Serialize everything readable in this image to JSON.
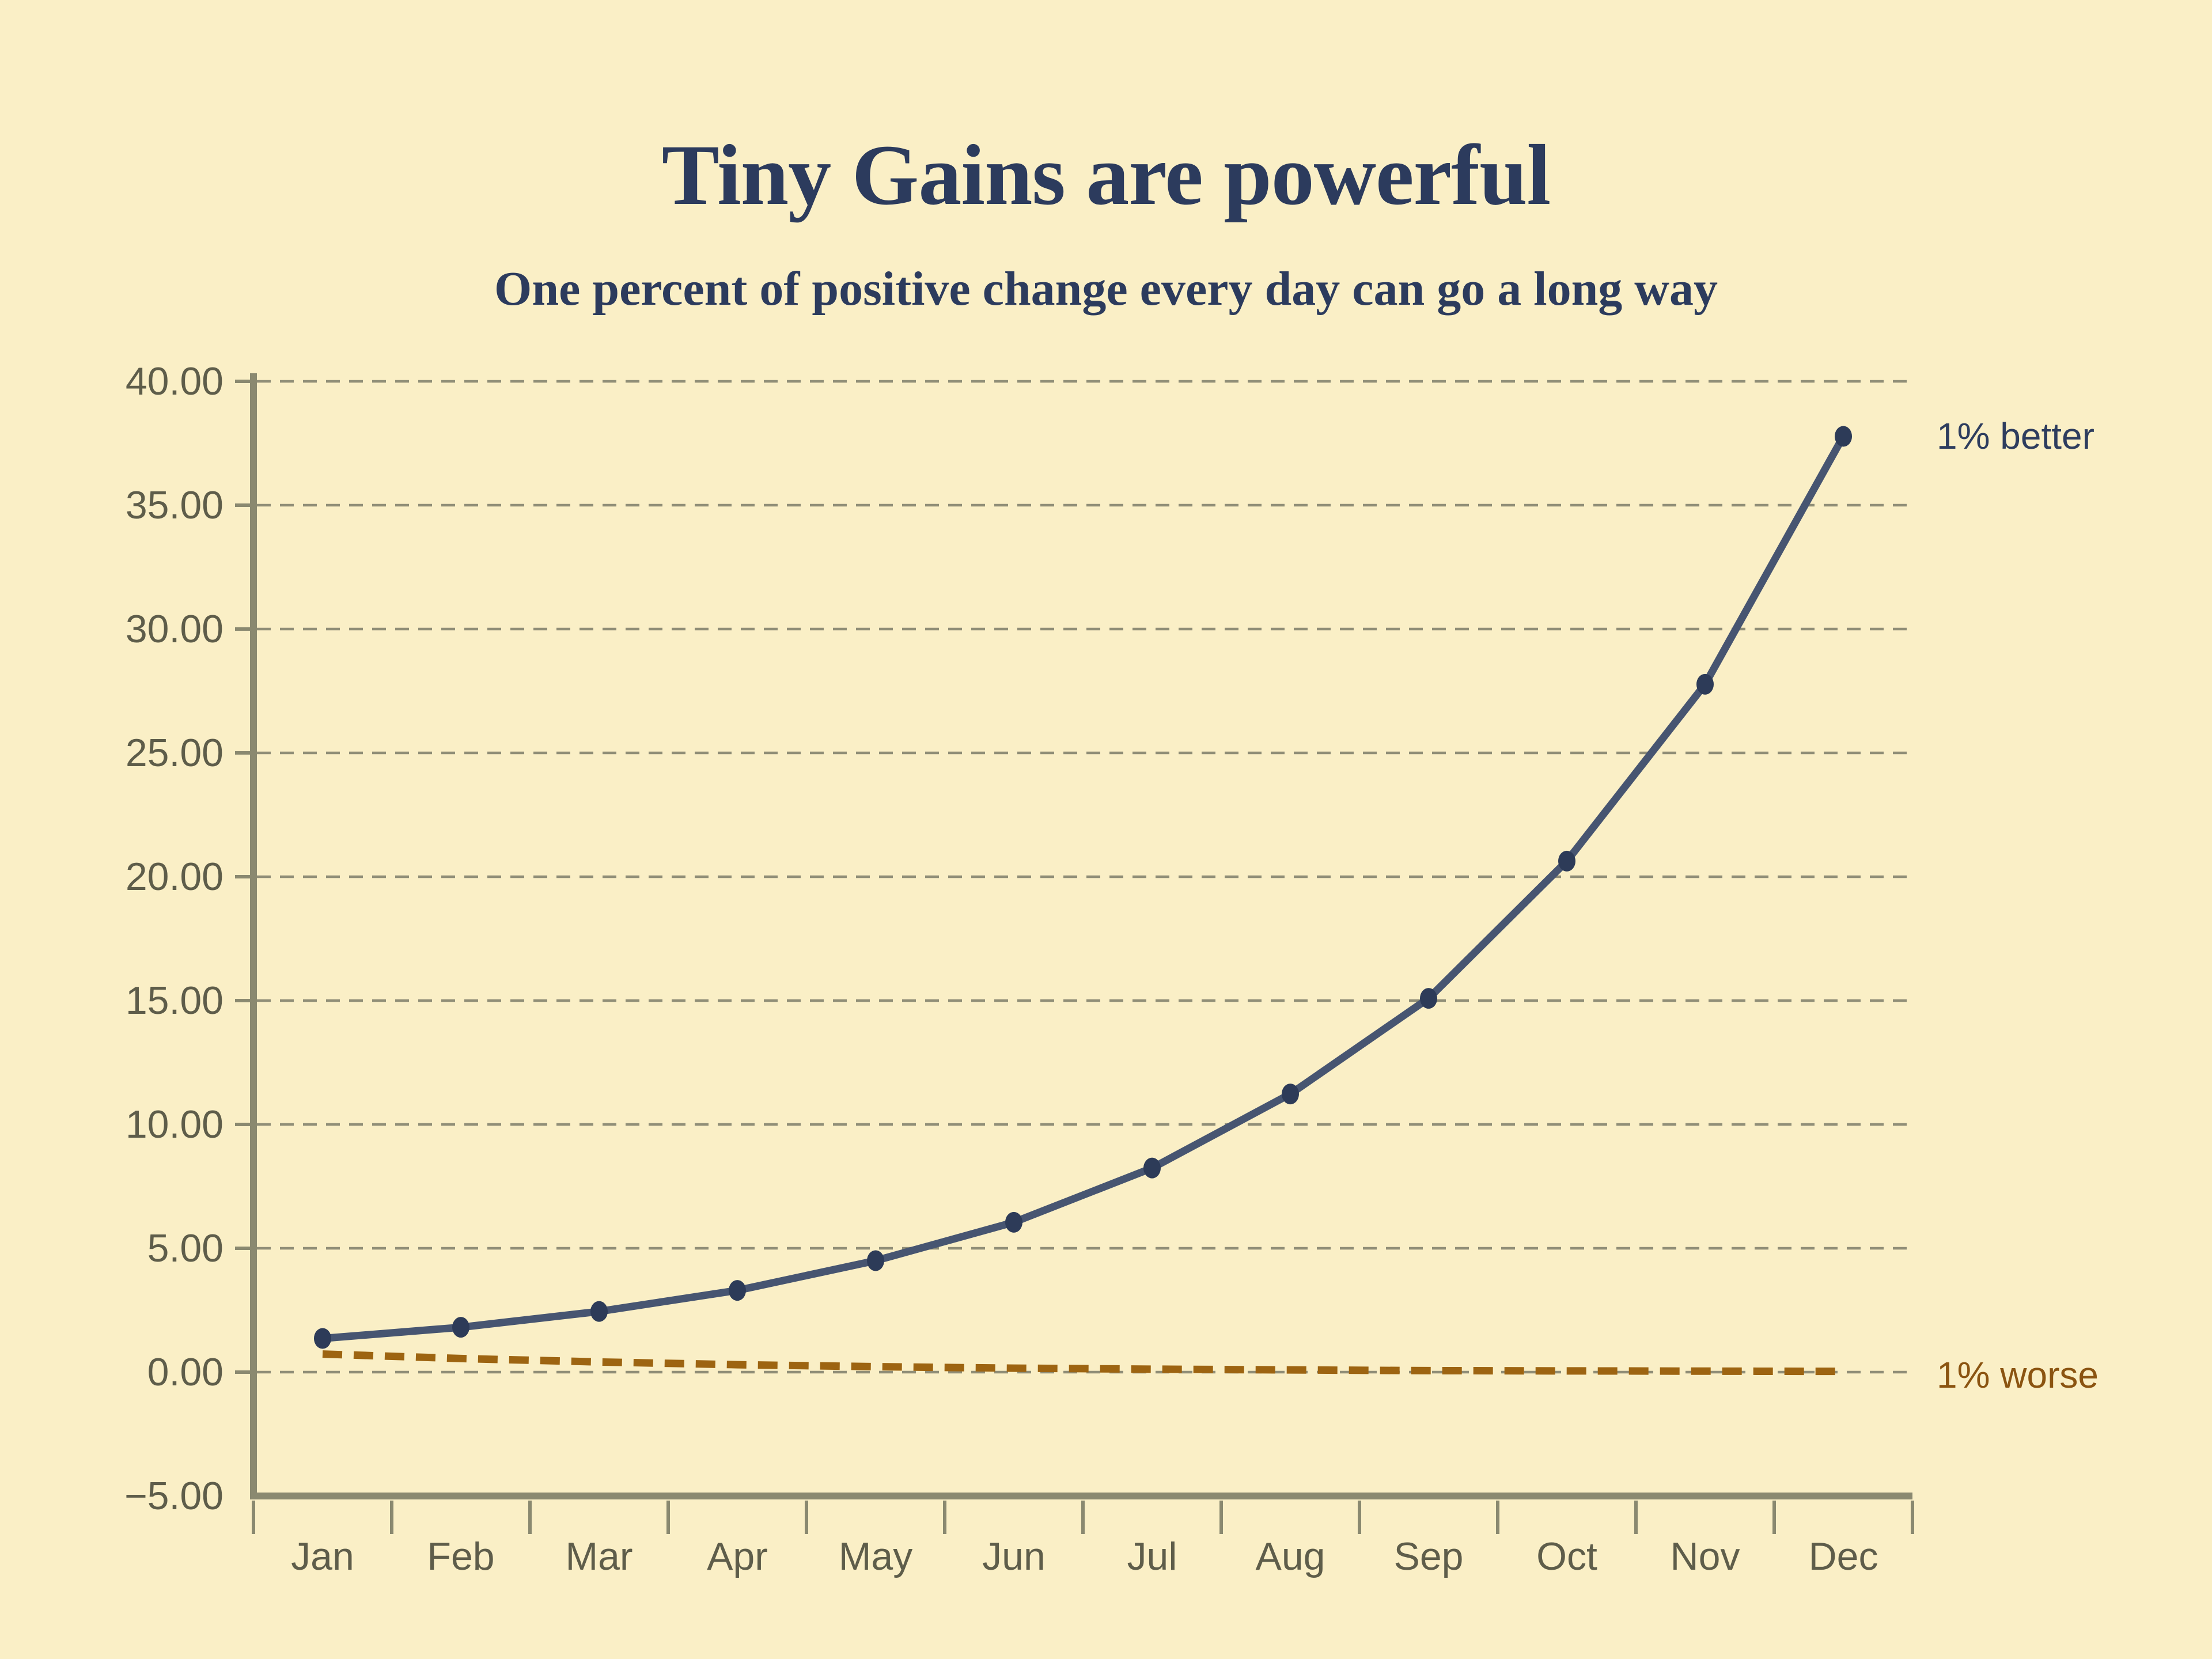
{
  "page": {
    "background_color": "#FAEFC6"
  },
  "chart_data": {
    "type": "line",
    "title": "Tiny Gains are powerful",
    "subtitle": "One percent of positive change every day can go a long way",
    "title_color": "#2C3B5D",
    "categories": [
      "Jan",
      "Feb",
      "Mar",
      "Apr",
      "May",
      "Jun",
      "Jul",
      "Aug",
      "Sep",
      "Oct",
      "Nov",
      "Dec"
    ],
    "series": [
      {
        "name": "1% better",
        "label": "1% better",
        "values": [
          1.36,
          1.81,
          2.45,
          3.3,
          4.5,
          6.05,
          8.24,
          11.23,
          15.09,
          20.63,
          27.77,
          37.78
        ],
        "line_color": "#475571",
        "marker_color": "#2D3B58",
        "label_color": "#2E3D5E",
        "line_style": "solid",
        "markers": true
      },
      {
        "name": "1% worse",
        "label": "1% worse",
        "values": [
          0.73,
          0.55,
          0.41,
          0.3,
          0.22,
          0.16,
          0.12,
          0.09,
          0.06,
          0.05,
          0.04,
          0.03
        ],
        "line_color": "#9D6411",
        "marker_color": "#9D6411",
        "label_color": "#8B5411",
        "line_style": "dashed",
        "markers": false
      }
    ],
    "ylim": [
      -5,
      40
    ],
    "ytick_step": 5,
    "ytick_decimals": 2,
    "grid": {
      "show": true,
      "style": "dashed",
      "color": "#908E77"
    },
    "axis_color": "#8A8970",
    "tick_label_color": "#5E5D4A",
    "legend_position": "right-of-last-point"
  }
}
